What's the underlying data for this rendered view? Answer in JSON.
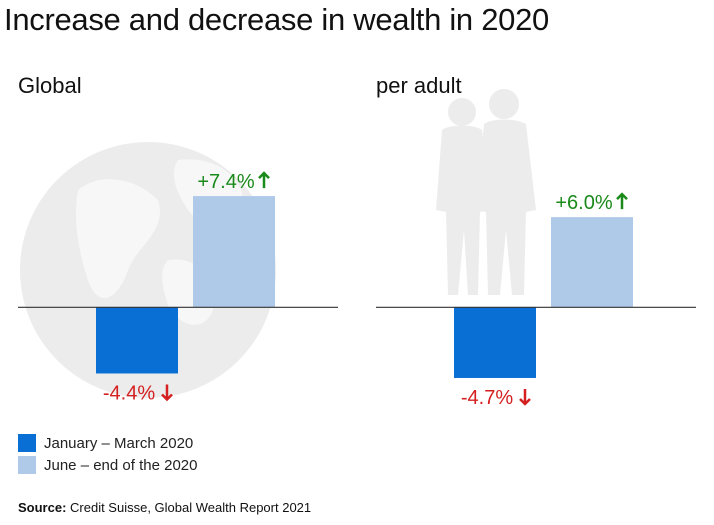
{
  "title": "Increase and decrease in wealth in 2020",
  "colors": {
    "jan_mar": "#0a6fd4",
    "jun_end": "#afc9e8",
    "increase_label": "#1a8a1a",
    "decrease_label": "#d42020",
    "baseline": "#333333",
    "background_art": "#ececec"
  },
  "legend": {
    "items": [
      {
        "label": "January – March 2020",
        "color": "#0a6fd4"
      },
      {
        "label": "June – end of the 2020",
        "color": "#afc9e8"
      }
    ]
  },
  "source": {
    "label": "Source:",
    "text": " Credit Suisse, Global Wealth Report 2021"
  },
  "chart_data": [
    {
      "type": "bar",
      "title": "Global",
      "background_icon": "globe-icon",
      "categories": [
        "January – March 2020",
        "June – end of the 2020"
      ],
      "values": [
        -4.4,
        7.4
      ],
      "labels": [
        "-4.4%",
        "+7.4%"
      ],
      "arrows": [
        "arrow-down-icon",
        "arrow-up-icon"
      ],
      "ylim": [
        -5.5,
        9.8
      ],
      "grid": false
    },
    {
      "type": "bar",
      "title": "per adult",
      "background_icon": "couple-silhouette-icon",
      "categories": [
        "January – March 2020",
        "June – end of the 2020"
      ],
      "values": [
        -4.7,
        6.0
      ],
      "labels": [
        "-4.7%",
        "+6.0%"
      ],
      "arrows": [
        "arrow-down-icon",
        "arrow-up-icon"
      ],
      "ylim": [
        -5.5,
        9.8
      ],
      "grid": false
    }
  ]
}
